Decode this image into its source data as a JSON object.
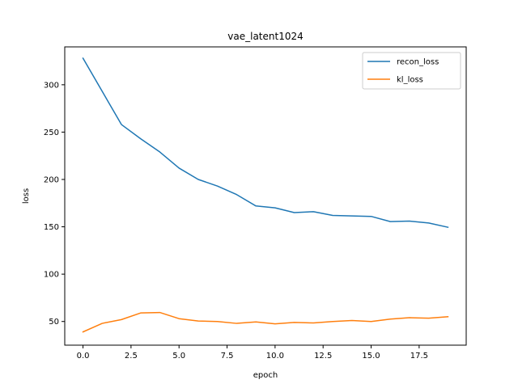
{
  "chart_data": {
    "type": "line",
    "title": "vae_latent1024",
    "xlabel": "epoch",
    "ylabel": "loss",
    "xlim": [
      -0.95,
      19.95
    ],
    "ylim": [
      25,
      340
    ],
    "xticks": [
      0.0,
      2.5,
      5.0,
      7.5,
      10.0,
      12.5,
      15.0,
      17.5
    ],
    "xtick_labels": [
      "0.0",
      "2.5",
      "5.0",
      "7.5",
      "10.0",
      "12.5",
      "15.0",
      "17.5"
    ],
    "yticks": [
      50,
      100,
      150,
      200,
      250,
      300
    ],
    "ytick_labels": [
      "50",
      "100",
      "150",
      "200",
      "250",
      "300"
    ],
    "legend_position": "top-right",
    "grid": false,
    "x": [
      0,
      1,
      2,
      3,
      4,
      5,
      6,
      7,
      8,
      9,
      10,
      11,
      12,
      13,
      14,
      15,
      16,
      17,
      18,
      19
    ],
    "series": [
      {
        "name": "recon_loss",
        "color": "#1f77b4",
        "values": [
          328,
          293,
          258,
          243,
          229,
          212,
          200,
          193,
          184,
          172,
          170,
          165,
          166,
          162,
          161.5,
          161,
          155.5,
          156,
          154,
          149.5
        ]
      },
      {
        "name": "kl_loss",
        "color": "#ff7f0e",
        "values": [
          39,
          48,
          52,
          59,
          59.5,
          53,
          50.5,
          50,
          48,
          49.5,
          47.5,
          49,
          48.5,
          50,
          51,
          50,
          52.5,
          54,
          53.5,
          55
        ]
      }
    ]
  }
}
